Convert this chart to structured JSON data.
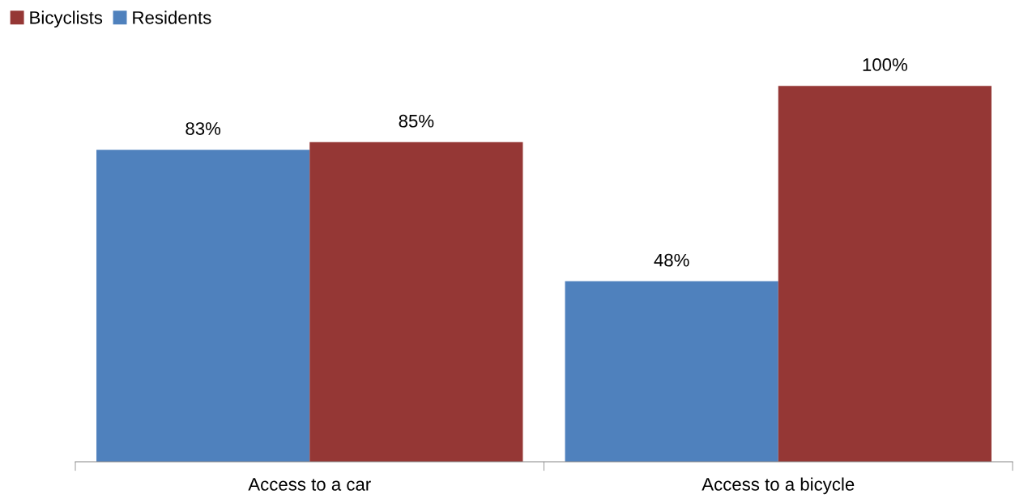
{
  "chart_data": {
    "type": "bar",
    "categories": [
      "Access to a car",
      "Access to a bicycle"
    ],
    "series": [
      {
        "name": "Residents",
        "color": "#4f81bd",
        "values": [
          83,
          48
        ],
        "value_labels": [
          "83%",
          "48%"
        ]
      },
      {
        "name": "Bicyclists",
        "color": "#953735",
        "values": [
          85,
          100
        ],
        "value_labels": [
          "85%",
          "100%"
        ]
      }
    ],
    "legend": "top left"
  }
}
